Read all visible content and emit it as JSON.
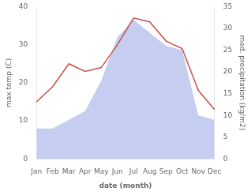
{
  "chart_data": {
    "type": "line",
    "categories": [
      "Jan",
      "Feb",
      "Mar",
      "Apr",
      "May",
      "Jun",
      "Jul",
      "Aug",
      "Sep",
      "Oct",
      "Nov",
      "Dec"
    ],
    "series": [
      {
        "type": "area",
        "color": "#c5cef0",
        "axis": "y2",
        "values": [
          7,
          7,
          9,
          11,
          18,
          28,
          32,
          29,
          26,
          25,
          10,
          9
        ]
      },
      {
        "type": "line",
        "color": "#c8504a",
        "values": [
          15,
          19,
          25,
          23,
          24,
          30,
          37,
          36,
          31,
          29,
          18,
          13
        ]
      }
    ],
    "xlabel": "date (month)",
    "ylabel": "max temp (C)",
    "y2label": "med. precipitation (kg/m2)",
    "ylim": [
      0,
      40
    ],
    "yticks": [
      0,
      10,
      20,
      30,
      40
    ],
    "y2lim": [
      0,
      35
    ],
    "y2ticks": [
      0,
      5,
      10,
      15,
      20,
      25,
      30,
      35
    ],
    "grid": false
  }
}
